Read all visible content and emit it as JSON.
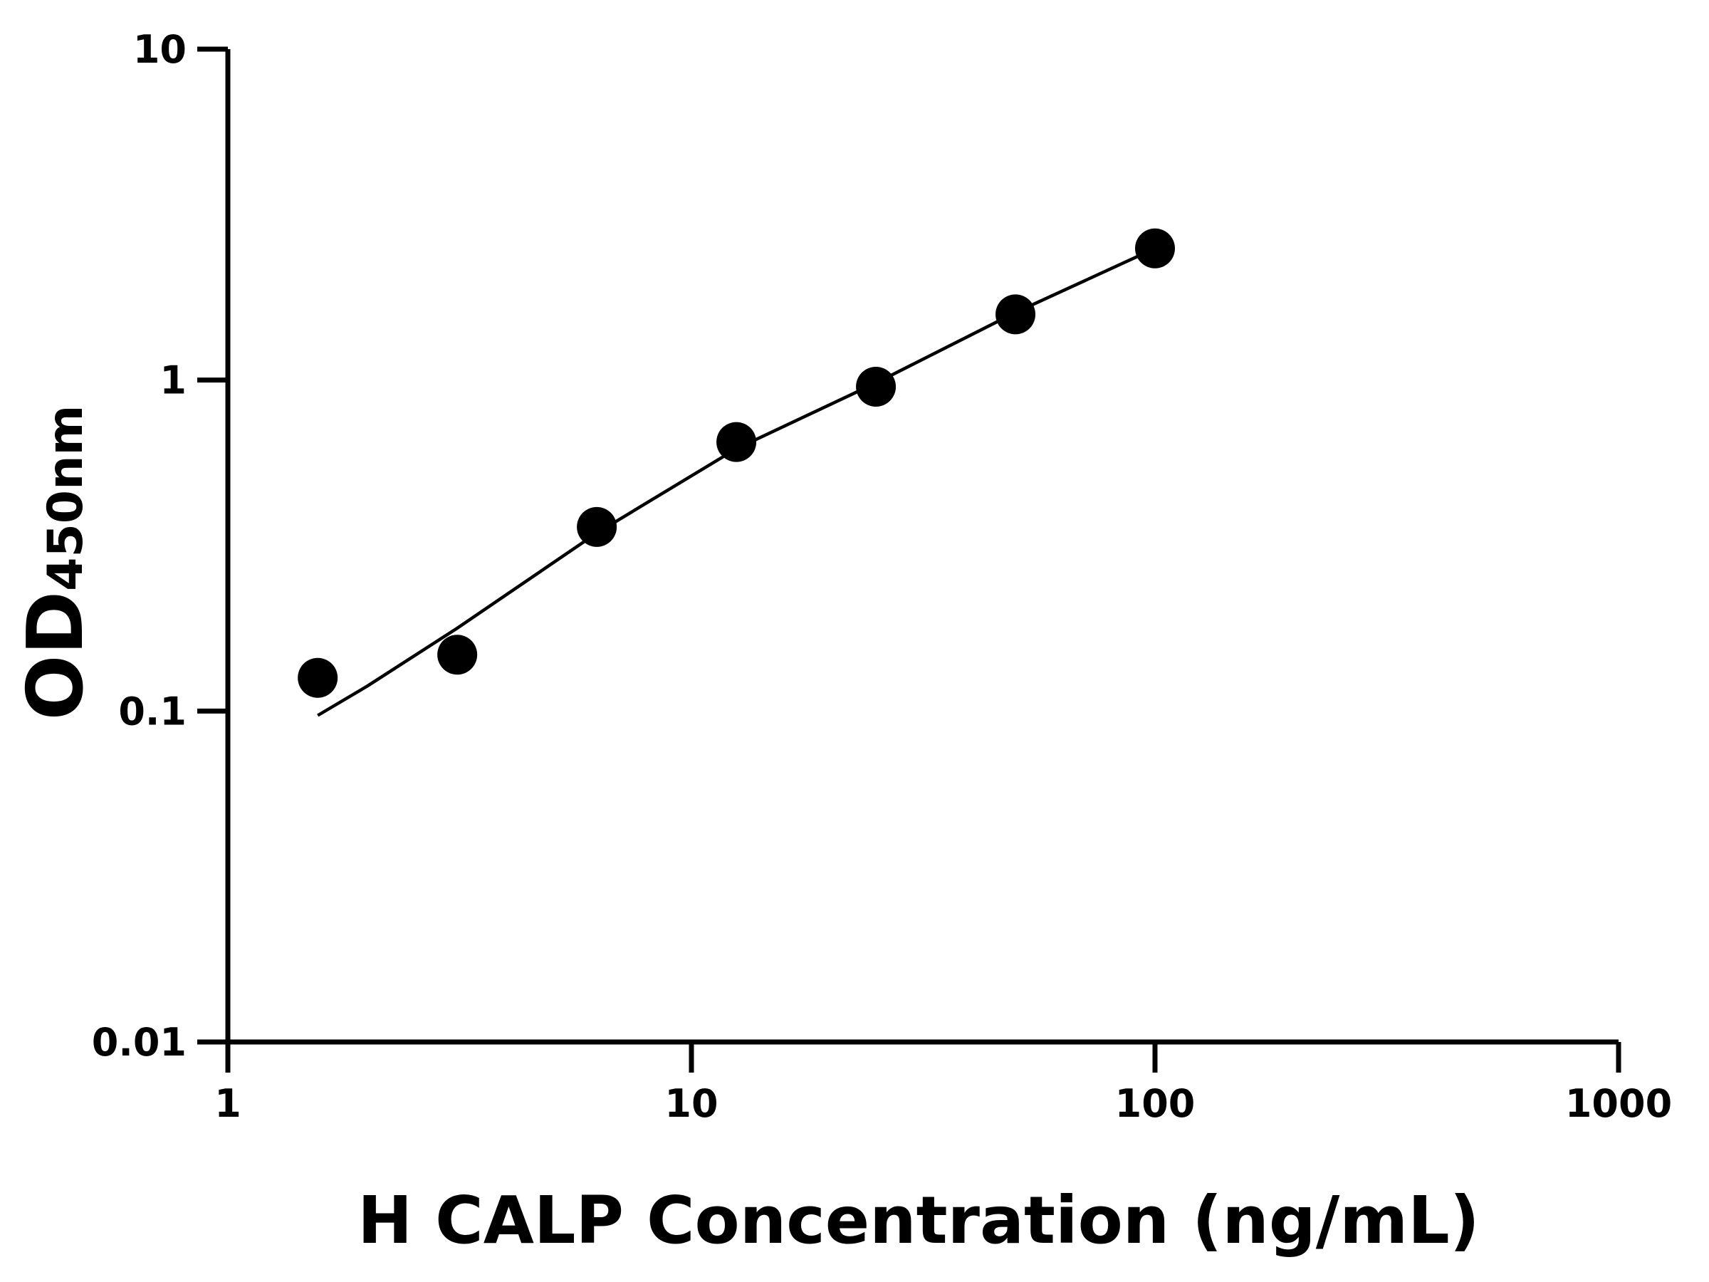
{
  "chart_data": {
    "type": "scatter",
    "title": "",
    "xlabel": "H CALP Concentration (ng/mL)",
    "ylabel_main": "OD",
    "ylabel_sub": "450nm",
    "x_scale": "log",
    "y_scale": "log",
    "xlim": [
      1,
      1000
    ],
    "ylim": [
      0.01,
      10
    ],
    "x_ticks": [
      "1",
      "10",
      "100",
      "1000"
    ],
    "y_ticks": [
      "0.01",
      "0.1",
      "1",
      "10"
    ],
    "grid": false,
    "legend": "none",
    "colors": {
      "points": "#000000",
      "curve": "#000000",
      "axes": "#000000"
    },
    "series": [
      {
        "type": "scatter",
        "x": [
          1.5625,
          3.125,
          6.25,
          12.5,
          25,
          50,
          100
        ],
        "y": [
          0.126,
          0.148,
          0.36,
          0.65,
          0.955,
          1.58,
          2.5
        ]
      },
      {
        "type": "fit-curve",
        "x": [
          1.5625,
          2,
          3.125,
          6.25,
          12.5,
          25,
          50,
          100
        ],
        "y": [
          0.097,
          0.119,
          0.178,
          0.345,
          0.62,
          0.98,
          1.6,
          2.5
        ]
      }
    ]
  }
}
